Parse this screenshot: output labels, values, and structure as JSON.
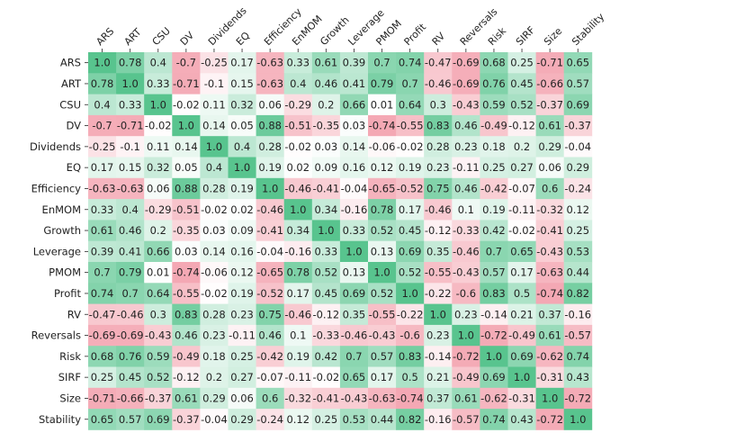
{
  "chart_data": {
    "type": "heatmap",
    "title": "",
    "xlabel": "",
    "ylabel": "",
    "row_labels": [
      "ARS",
      "ART",
      "CSU",
      "DV",
      "Dividends",
      "EQ",
      "Efficiency",
      "EnMOM",
      "Growth",
      "Leverage",
      "PMOM",
      "Profit",
      "RV",
      "Reversals",
      "Risk",
      "SIRF",
      "Size",
      "Stability"
    ],
    "col_labels": [
      "ARS",
      "ART",
      "CSU",
      "DV",
      "Dividends",
      "EQ",
      "Efficiency",
      "EnMOM",
      "Growth",
      "Leverage",
      "PMOM",
      "Profit",
      "RV",
      "Reversals",
      "Risk",
      "SIRF",
      "Size",
      "Stability"
    ],
    "values": [
      [
        1.0,
        0.78,
        0.4,
        -0.7,
        -0.25,
        0.17,
        -0.63,
        0.33,
        0.61,
        0.39,
        0.7,
        0.74,
        -0.47,
        -0.69,
        0.68,
        0.25,
        -0.71,
        0.65
      ],
      [
        0.78,
        1.0,
        0.33,
        -0.71,
        -0.1,
        0.15,
        -0.63,
        0.4,
        0.46,
        0.41,
        0.79,
        0.7,
        -0.46,
        -0.69,
        0.76,
        0.45,
        -0.66,
        0.57
      ],
      [
        0.4,
        0.33,
        1.0,
        -0.02,
        0.11,
        0.32,
        0.06,
        -0.29,
        0.2,
        0.66,
        0.01,
        0.64,
        0.3,
        -0.43,
        0.59,
        0.52,
        -0.37,
        0.69
      ],
      [
        -0.7,
        -0.71,
        -0.02,
        1.0,
        0.14,
        0.05,
        0.88,
        -0.51,
        -0.35,
        0.03,
        -0.74,
        -0.55,
        0.83,
        0.46,
        -0.49,
        -0.12,
        0.61,
        -0.37
      ],
      [
        -0.25,
        -0.1,
        0.11,
        0.14,
        1.0,
        0.4,
        0.28,
        -0.02,
        0.03,
        0.14,
        -0.06,
        -0.02,
        0.28,
        0.23,
        0.18,
        0.2,
        0.29,
        -0.04
      ],
      [
        0.17,
        0.15,
        0.32,
        0.05,
        0.4,
        1.0,
        0.19,
        0.02,
        0.09,
        0.16,
        0.12,
        0.19,
        0.23,
        -0.11,
        0.25,
        0.27,
        0.06,
        0.29
      ],
      [
        -0.63,
        -0.63,
        0.06,
        0.88,
        0.28,
        0.19,
        1.0,
        -0.46,
        -0.41,
        -0.04,
        -0.65,
        -0.52,
        0.75,
        0.46,
        -0.42,
        -0.07,
        0.6,
        -0.24
      ],
      [
        0.33,
        0.4,
        -0.29,
        -0.51,
        -0.02,
        0.02,
        -0.46,
        1.0,
        0.34,
        -0.16,
        0.78,
        0.17,
        -0.46,
        0.1,
        0.19,
        -0.11,
        -0.32,
        0.12
      ],
      [
        0.61,
        0.46,
        0.2,
        -0.35,
        0.03,
        0.09,
        -0.41,
        0.34,
        1.0,
        0.33,
        0.52,
        0.45,
        -0.12,
        -0.33,
        0.42,
        -0.02,
        -0.41,
        0.25
      ],
      [
        0.39,
        0.41,
        0.66,
        0.03,
        0.14,
        0.16,
        -0.04,
        -0.16,
        0.33,
        1.0,
        0.13,
        0.69,
        0.35,
        -0.46,
        0.7,
        0.65,
        -0.43,
        0.53
      ],
      [
        0.7,
        0.79,
        0.01,
        -0.74,
        -0.06,
        0.12,
        -0.65,
        0.78,
        0.52,
        0.13,
        1.0,
        0.52,
        -0.55,
        -0.43,
        0.57,
        0.17,
        -0.63,
        0.44
      ],
      [
        0.74,
        0.7,
        0.64,
        -0.55,
        -0.02,
        0.19,
        -0.52,
        0.17,
        0.45,
        0.69,
        0.52,
        1.0,
        -0.22,
        -0.6,
        0.83,
        0.5,
        -0.74,
        0.82
      ],
      [
        -0.47,
        -0.46,
        0.3,
        0.83,
        0.28,
        0.23,
        0.75,
        -0.46,
        -0.12,
        0.35,
        -0.55,
        -0.22,
        1.0,
        0.23,
        -0.14,
        0.21,
        0.37,
        -0.16
      ],
      [
        -0.69,
        -0.69,
        -0.43,
        0.46,
        0.23,
        -0.11,
        0.46,
        0.1,
        -0.33,
        -0.46,
        -0.43,
        -0.6,
        0.23,
        1.0,
        -0.72,
        -0.49,
        0.61,
        -0.57
      ],
      [
        0.68,
        0.76,
        0.59,
        -0.49,
        0.18,
        0.25,
        -0.42,
        0.19,
        0.42,
        0.7,
        0.57,
        0.83,
        -0.14,
        -0.72,
        1.0,
        0.69,
        -0.62,
        0.74
      ],
      [
        0.25,
        0.45,
        0.52,
        -0.12,
        0.2,
        0.27,
        -0.07,
        -0.11,
        -0.02,
        0.65,
        0.17,
        0.5,
        0.21,
        -0.49,
        0.69,
        1.0,
        -0.31,
        0.43
      ],
      [
        -0.71,
        -0.66,
        -0.37,
        0.61,
        0.29,
        0.06,
        0.6,
        -0.32,
        -0.41,
        -0.43,
        -0.63,
        -0.74,
        0.37,
        0.61,
        -0.62,
        -0.31,
        1.0,
        -0.72
      ],
      [
        0.65,
        0.57,
        0.69,
        -0.37,
        -0.04,
        0.29,
        -0.24,
        0.12,
        0.25,
        0.53,
        0.44,
        0.82,
        -0.16,
        -0.57,
        0.74,
        0.43,
        -0.72,
        1.0
      ]
    ],
    "value_range": [
      -1,
      1
    ],
    "colors": {
      "negative": "#f08a99",
      "neutral": "#ffffff",
      "positive": "#58c48e"
    },
    "grid": false,
    "legend": "none"
  }
}
